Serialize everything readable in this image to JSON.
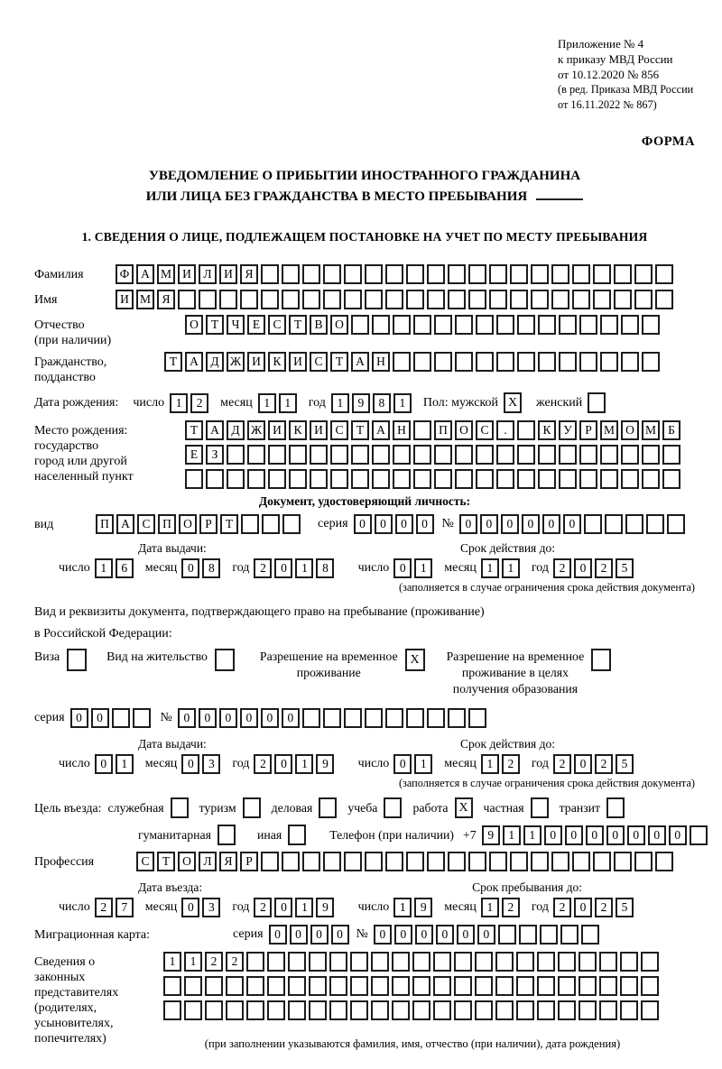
{
  "annex": {
    "line1": "Приложение № 4",
    "line2": "к приказу МВД России",
    "line3": "от 10.12.2020 № 856",
    "line4": "(в ред. Приказа МВД России",
    "line5": "от 16.11.2022 № 867)"
  },
  "form_label": "ФОРМА",
  "title": {
    "line1": "УВЕДОМЛЕНИЕ О ПРИБЫТИИ ИНОСТРАННОГО ГРАЖДАНИНА",
    "line2": "ИЛИ ЛИЦА БЕЗ ГРАЖДАНСТВА В МЕСТО ПРЕБЫВАНИЯ"
  },
  "section1_heading": "1. СВЕДЕНИЯ О ЛИЦЕ, ПОДЛЕЖАЩЕМ ПОСТАНОВКЕ НА УЧЕТ ПО МЕСТУ ПРЕБЫВАНИЯ",
  "words": {
    "day": "число",
    "month": "месяц",
    "year": "год",
    "series": "серия",
    "number": "№"
  },
  "person": {
    "surname": {
      "label": "Фамилия",
      "value": "ФАМИЛИЯ",
      "length": 27
    },
    "given_name": {
      "label": "Имя",
      "value": "ИМЯ",
      "length": 27
    },
    "patronymic": {
      "label": "Отчество",
      "label2": "(при наличии)",
      "value": "ОТЧЕСТВО",
      "length": 23
    },
    "citizenship": {
      "label": "Гражданство,",
      "label2": "подданство",
      "value": "ТАДЖИКИСТАН",
      "length": 24
    },
    "birth_date": {
      "label": "Дата рождения:",
      "day": "12",
      "month": "11",
      "year": "1981"
    },
    "sex": {
      "label": "Пол: мужской",
      "male_checked": "X",
      "female_label": "женский",
      "female_checked": ""
    },
    "birth_place": {
      "label1": "Место рождения:",
      "label2": "государство",
      "label3": "город или другой",
      "label4": "населенный пункт",
      "row1": {
        "value": "ТАДЖИКИСТАН ПОС. КУРМОМБ",
        "length": 24
      },
      "row2": {
        "value": "ЕЗ",
        "length": 24
      },
      "row3": {
        "value": "",
        "length": 24
      }
    }
  },
  "identity_doc": {
    "heading": "Документ, удостоверяющий личность:",
    "type": {
      "label": "вид",
      "value": "ПАСПОРТ",
      "length": 10
    },
    "series": {
      "value": "0000",
      "length": 4
    },
    "number": {
      "value": "000000",
      "length": 11
    },
    "issue_heading": "Дата выдачи:",
    "issue": {
      "day": "16",
      "month": "08",
      "year": "2018"
    },
    "expiry_heading": "Срок действия до:",
    "expiry": {
      "day": "01",
      "month": "11",
      "year": "2025"
    },
    "note": "(заполняется в случае ограничения срока действия документа)"
  },
  "residence_doc": {
    "intro1": "Вид и реквизиты документа, подтверждающего право на пребывание (проживание)",
    "intro2": "в Российской Федерации:",
    "options": [
      {
        "line1": "Виза",
        "checked": ""
      },
      {
        "line1": "Вид на жительство",
        "checked": ""
      },
      {
        "line1": "Разрешение на временное",
        "line2": "проживание",
        "checked": "X"
      },
      {
        "line1": "Разрешение на временное",
        "line2": "проживание в целях",
        "line3": "получения образования",
        "checked": ""
      }
    ],
    "series": {
      "value": "00",
      "length": 4
    },
    "number": {
      "value": "000000",
      "length": 15
    },
    "issue_heading": "Дата выдачи:",
    "issue": {
      "day": "01",
      "month": "03",
      "year": "2019"
    },
    "expiry_heading": "Срок действия до:",
    "expiry": {
      "day": "01",
      "month": "12",
      "year": "2025"
    },
    "note": "(заполняется в случае ограничения срока действия документа)"
  },
  "visit": {
    "purpose_label": "Цель въезда:",
    "purposes": [
      {
        "label": "служебная",
        "checked": ""
      },
      {
        "label": "туризм",
        "checked": ""
      },
      {
        "label": "деловая",
        "checked": ""
      },
      {
        "label": "учеба",
        "checked": ""
      },
      {
        "label": "работа",
        "checked": "X"
      },
      {
        "label": "частная",
        "checked": ""
      },
      {
        "label": "транзит",
        "checked": ""
      }
    ],
    "purposes2": [
      {
        "label": "гуманитарная",
        "checked": ""
      },
      {
        "label": "иная",
        "checked": ""
      }
    ],
    "phone_label": "Телефон (при наличии)",
    "phone_prefix": "+7",
    "phone": {
      "value": "9110000000",
      "length": 11
    },
    "profession": {
      "label": "Профессия",
      "value": "СТОЛЯР",
      "length": 26
    }
  },
  "entry": {
    "entry_heading": "Дата въезда:",
    "entry_date": {
      "day": "27",
      "month": "03",
      "year": "2019"
    },
    "stay_heading": "Срок пребывания до:",
    "stay_date": {
      "day": "19",
      "month": "12",
      "year": "2025"
    }
  },
  "migration_card": {
    "label": "Миграционная карта:",
    "series": {
      "value": "0000",
      "length": 4
    },
    "number": {
      "value": "000000",
      "length": 11
    }
  },
  "representatives": {
    "label1": "Сведения о",
    "label2": "законных",
    "label3": "представителях",
    "label4": "(родителях,",
    "label5": "усыновителях,",
    "label6": "попечителях)",
    "row1": {
      "value": "1122",
      "length": 24
    },
    "row2": {
      "value": "",
      "length": 24
    },
    "row3": {
      "value": "",
      "length": 24
    },
    "note": "(при заполнении указываются фамилия, имя, отчество (при наличии), дата рождения)"
  }
}
